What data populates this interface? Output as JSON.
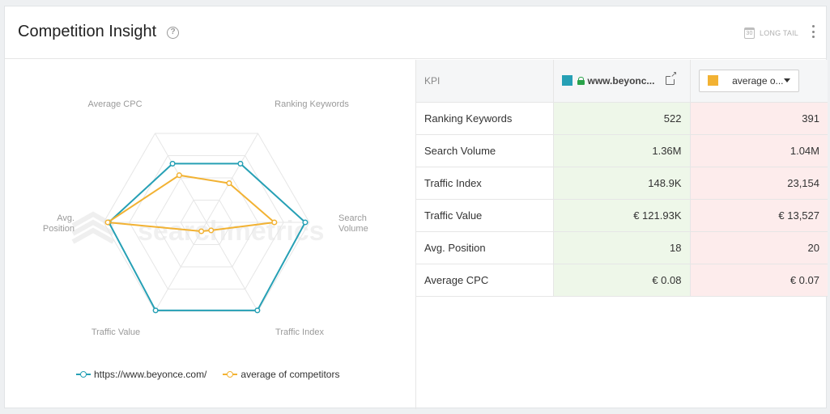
{
  "card": {
    "title": "Competition Insight",
    "help_glyph": "?",
    "longtail_label": "LONG TAIL",
    "calendar_glyph": "30"
  },
  "chart_data": {
    "type": "radar",
    "axes": [
      "Ranking Keywords",
      "Search Volume",
      "Traffic Index",
      "Traffic Value",
      "Avg. Position",
      "Average CPC"
    ],
    "series": [
      {
        "name": "https://www.beyonce.com/",
        "color": "#26a0b5",
        "values": [
          0.66,
          0.96,
          0.99,
          0.99,
          0.95,
          0.66
        ]
      },
      {
        "name": "average of competitors",
        "color": "#f2b233",
        "values": [
          0.44,
          0.66,
          0.09,
          0.1,
          0.96,
          0.53
        ]
      }
    ],
    "watermark": "searchmetrics",
    "grid_levels": 4
  },
  "table": {
    "headers": {
      "kpi": "KPI",
      "site": "www.beyonc...",
      "site_color": "#26a0b5",
      "competitor": "average o...",
      "competitor_color": "#f2b233"
    },
    "rows": [
      {
        "kpi": "Ranking Keywords",
        "a": "522",
        "b": "391"
      },
      {
        "kpi": "Search Volume",
        "a": "1.36M",
        "b": "1.04M"
      },
      {
        "kpi": "Traffic Index",
        "a": "148.9K",
        "b": "23,154"
      },
      {
        "kpi": "Traffic Value",
        "a": "€ 121.93K",
        "b": "€ 13,527"
      },
      {
        "kpi": "Avg. Position",
        "a": "18",
        "b": "20"
      },
      {
        "kpi": "Average CPC",
        "a": "€ 0.08",
        "b": "€ 0.07"
      }
    ]
  },
  "colors": {
    "series_a": "#26a0b5",
    "series_b": "#f2b233",
    "cell_a_bg": "#eef7e9",
    "cell_b_bg": "#fdecec"
  }
}
